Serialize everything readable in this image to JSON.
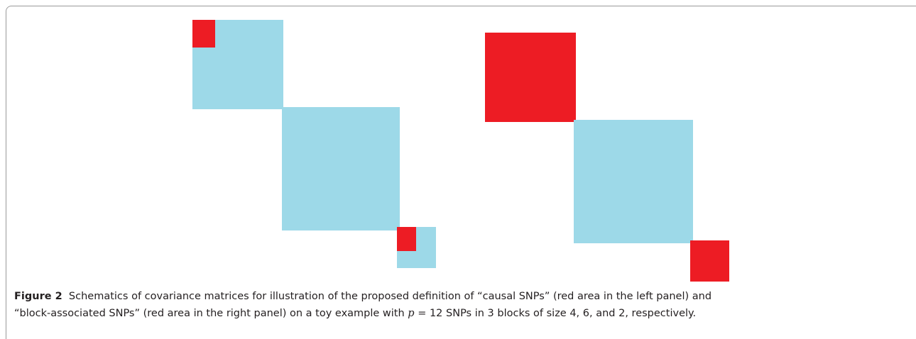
{
  "caption": {
    "label": "Figure 2",
    "text_before": "Schematics of covariance matrices for illustration of the proposed definition of “causal SNPs” (red area in the left panel) and “block-associated SNPs” (red area in the right panel) on a toy example with",
    "variable": "p",
    "text_after": "= 12 SNPs in 3 blocks of size 4, 6, and 2, respectively."
  }
}
